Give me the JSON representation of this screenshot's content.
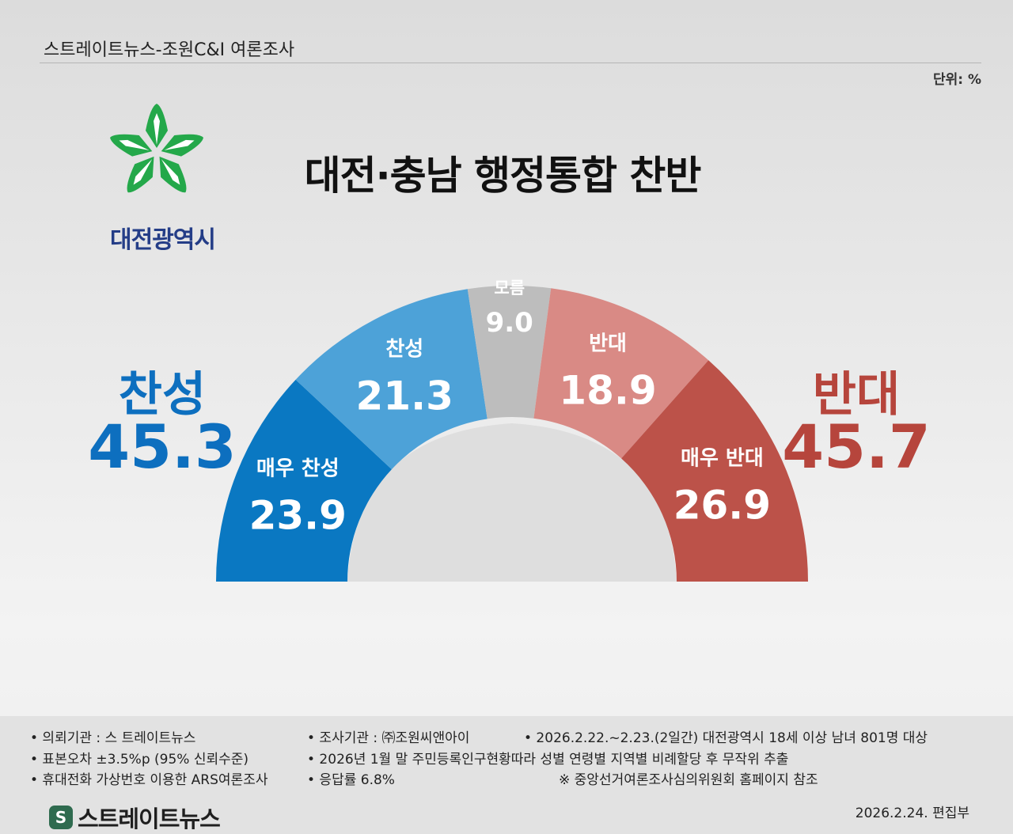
{
  "header": {
    "source_title": "스트레이트뉴스-조원C&I 여론조사",
    "unit": "단위: %"
  },
  "logo": {
    "name": "대전광역시",
    "icon": "daejeon-city-emblem-icon",
    "color": "#24a84a"
  },
  "title": "대전·충남 행정통합 찬반",
  "summary": {
    "support": {
      "label": "찬성",
      "value": "45.3",
      "color": "#0d6fbf"
    },
    "oppose": {
      "label": "반대",
      "value": "45.7",
      "color": "#b6453c"
    }
  },
  "chart_data": {
    "type": "pie",
    "shape": "half-donut",
    "title": "대전·충남 행정통합 찬반",
    "unit": "%",
    "categories": [
      "매우 찬성",
      "찬성",
      "모름",
      "반대",
      "매우 반대"
    ],
    "values": [
      23.9,
      21.3,
      9.0,
      18.9,
      26.9
    ],
    "value_labels": [
      "23.9",
      "21.3",
      "9.0",
      "18.9",
      "26.9"
    ],
    "colors": [
      "#0a78c2",
      "#4da2d8",
      "#bdbdbd",
      "#d98a85",
      "#bc5249"
    ],
    "totals": [
      {
        "label": "찬성",
        "value": 45.3
      },
      {
        "label": "반대",
        "value": 45.7
      }
    ]
  },
  "notes": [
    "• 의뢰기관 : 스 트레이트뉴스",
    "• 조사기관 : ㈜조원씨앤아이",
    "• 2026.2.22.~2.23.(2일간) 대전광역시 18세 이상 남녀 801명 대상",
    "• 표본오차 ±3.5%p (95% 신뢰수준)",
    "• 2026년 1월 말 주민등록인구현황따라 성별 연령별 지역별 비례할당 후 무작위 추출",
    "• 휴대전화 가상번호 이용한 ARS여론조사",
    "• 응답률 6.8%",
    "※ 중앙선거여론조사심의위원회 홈페이지 참조"
  ],
  "footer": {
    "brand": "스트레이트뉴스",
    "brand_icon": "straight-news-logo-icon",
    "date": "2026.2.24.  편집부"
  }
}
